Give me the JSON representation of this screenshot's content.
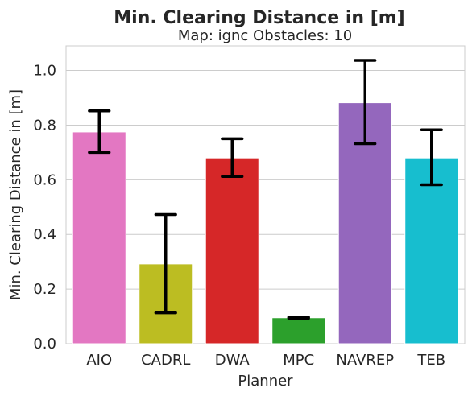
{
  "chart_data": {
    "type": "bar",
    "title": "Min. Clearing Distance in [m]",
    "subtitle": "Map: ignc Obstacles: 10",
    "xlabel": "Planner",
    "ylabel": "Min. Clearing Distance in [m]",
    "ylim": [
      0,
      1.09
    ],
    "yticks": [
      "0.0",
      "0.2",
      "0.4",
      "0.6",
      "0.8",
      "1.0"
    ],
    "grid": true,
    "categories": [
      "AIO",
      "CADRL",
      "DWA",
      "MPC",
      "NAVREP",
      "TEB"
    ],
    "values": [
      0.775,
      0.292,
      0.68,
      0.095,
      0.882,
      0.68
    ],
    "error_low": [
      0.7,
      0.113,
      0.612,
      0.093,
      0.732,
      0.582
    ],
    "error_high": [
      0.852,
      0.473,
      0.75,
      0.097,
      1.037,
      0.783
    ],
    "colors": [
      "#e377c2",
      "#bcbd22",
      "#d62728",
      "#2ca02c",
      "#9467bd",
      "#17becf"
    ]
  }
}
